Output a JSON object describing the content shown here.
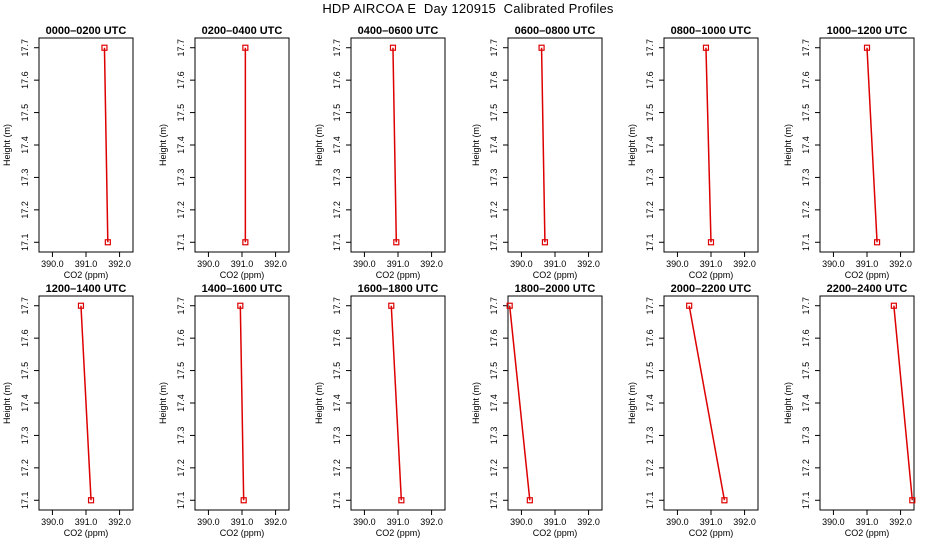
{
  "figure": {
    "title": "HDP AIRCOA E  Day 120915  Calibrated Profiles",
    "line_color": "#dd0000",
    "axis_color": "#000000"
  },
  "chart_data": [
    {
      "type": "line",
      "title": "0000–0200 UTC",
      "xlabel": "CO2 (ppm)",
      "ylabel": "Height (m)",
      "xlim": [
        389.6,
        392.4
      ],
      "ylim": [
        17.07,
        17.73
      ],
      "x_ticks": [
        "390.0",
        "391.0",
        "392.0"
      ],
      "y_ticks": [
        "17.1",
        "17.2",
        "17.3",
        "17.4",
        "17.5",
        "17.6",
        "17.7"
      ],
      "grid": false,
      "series": [
        {
          "x": [
            391.55,
            391.65
          ],
          "y": [
            17.7,
            17.1
          ]
        }
      ]
    },
    {
      "type": "line",
      "title": "0200–0400 UTC",
      "xlabel": "CO2 (ppm)",
      "ylabel": "Height (m)",
      "xlim": [
        389.6,
        392.4
      ],
      "ylim": [
        17.07,
        17.73
      ],
      "x_ticks": [
        "390.0",
        "391.0",
        "392.0"
      ],
      "y_ticks": [
        "17.1",
        "17.2",
        "17.3",
        "17.4",
        "17.5",
        "17.6",
        "17.7"
      ],
      "grid": false,
      "series": [
        {
          "x": [
            391.1,
            391.1
          ],
          "y": [
            17.7,
            17.1
          ]
        }
      ]
    },
    {
      "type": "line",
      "title": "0400–0600 UTC",
      "xlabel": "CO2 (ppm)",
      "ylabel": "Height (m)",
      "xlim": [
        389.6,
        392.4
      ],
      "ylim": [
        17.07,
        17.73
      ],
      "x_ticks": [
        "390.0",
        "391.0",
        "392.0"
      ],
      "y_ticks": [
        "17.1",
        "17.2",
        "17.3",
        "17.4",
        "17.5",
        "17.6",
        "17.7"
      ],
      "grid": false,
      "series": [
        {
          "x": [
            390.85,
            390.95
          ],
          "y": [
            17.7,
            17.1
          ]
        }
      ]
    },
    {
      "type": "line",
      "title": "0600–0800 UTC",
      "xlabel": "CO2 (ppm)",
      "ylabel": "Height (m)",
      "xlim": [
        389.6,
        392.4
      ],
      "ylim": [
        17.07,
        17.73
      ],
      "x_ticks": [
        "390.0",
        "391.0",
        "392.0"
      ],
      "y_ticks": [
        "17.1",
        "17.2",
        "17.3",
        "17.4",
        "17.5",
        "17.6",
        "17.7"
      ],
      "grid": false,
      "series": [
        {
          "x": [
            390.6,
            390.7
          ],
          "y": [
            17.7,
            17.1
          ]
        }
      ]
    },
    {
      "type": "line",
      "title": "0800–1000 UTC",
      "xlabel": "CO2 (ppm)",
      "ylabel": "Height (m)",
      "xlim": [
        389.6,
        392.4
      ],
      "ylim": [
        17.07,
        17.73
      ],
      "x_ticks": [
        "390.0",
        "391.0",
        "392.0"
      ],
      "y_ticks": [
        "17.1",
        "17.2",
        "17.3",
        "17.4",
        "17.5",
        "17.6",
        "17.7"
      ],
      "grid": false,
      "series": [
        {
          "x": [
            390.85,
            391.0
          ],
          "y": [
            17.7,
            17.1
          ]
        }
      ]
    },
    {
      "type": "line",
      "title": "1000–1200 UTC",
      "xlabel": "CO2 (ppm)",
      "ylabel": "Height (m)",
      "xlim": [
        389.6,
        392.4
      ],
      "ylim": [
        17.07,
        17.73
      ],
      "x_ticks": [
        "390.0",
        "391.0",
        "392.0"
      ],
      "y_ticks": [
        "17.1",
        "17.2",
        "17.3",
        "17.4",
        "17.5",
        "17.6",
        "17.7"
      ],
      "grid": false,
      "series": [
        {
          "x": [
            391.0,
            391.3
          ],
          "y": [
            17.7,
            17.1
          ]
        }
      ]
    },
    {
      "type": "line",
      "title": "1200–1400 UTC",
      "xlabel": "CO2 (ppm)",
      "ylabel": "Height (m)",
      "xlim": [
        389.6,
        392.4
      ],
      "ylim": [
        17.07,
        17.73
      ],
      "x_ticks": [
        "390.0",
        "391.0",
        "392.0"
      ],
      "y_ticks": [
        "17.1",
        "17.2",
        "17.3",
        "17.4",
        "17.5",
        "17.6",
        "17.7"
      ],
      "grid": false,
      "series": [
        {
          "x": [
            390.85,
            391.15
          ],
          "y": [
            17.7,
            17.1
          ]
        }
      ]
    },
    {
      "type": "line",
      "title": "1400–1600 UTC",
      "xlabel": "CO2 (ppm)",
      "ylabel": "Height (m)",
      "xlim": [
        389.6,
        392.4
      ],
      "ylim": [
        17.07,
        17.73
      ],
      "x_ticks": [
        "390.0",
        "391.0",
        "392.0"
      ],
      "y_ticks": [
        "17.1",
        "17.2",
        "17.3",
        "17.4",
        "17.5",
        "17.6",
        "17.7"
      ],
      "grid": false,
      "series": [
        {
          "x": [
            390.95,
            391.05
          ],
          "y": [
            17.7,
            17.1
          ]
        }
      ]
    },
    {
      "type": "line",
      "title": "1600–1800 UTC",
      "xlabel": "CO2 (ppm)",
      "ylabel": "Height (m)",
      "xlim": [
        389.6,
        392.4
      ],
      "ylim": [
        17.07,
        17.73
      ],
      "x_ticks": [
        "390.0",
        "391.0",
        "392.0"
      ],
      "y_ticks": [
        "17.1",
        "17.2",
        "17.3",
        "17.4",
        "17.5",
        "17.6",
        "17.7"
      ],
      "grid": false,
      "series": [
        {
          "x": [
            390.8,
            391.1
          ],
          "y": [
            17.7,
            17.1
          ]
        }
      ]
    },
    {
      "type": "line",
      "title": "1800–2000 UTC",
      "xlabel": "CO2 (ppm)",
      "ylabel": "Height (m)",
      "xlim": [
        389.6,
        392.4
      ],
      "ylim": [
        17.07,
        17.73
      ],
      "x_ticks": [
        "390.0",
        "391.0",
        "392.0"
      ],
      "y_ticks": [
        "17.1",
        "17.2",
        "17.3",
        "17.4",
        "17.5",
        "17.6",
        "17.7"
      ],
      "grid": false,
      "series": [
        {
          "x": [
            389.65,
            390.25
          ],
          "y": [
            17.7,
            17.1
          ]
        }
      ]
    },
    {
      "type": "line",
      "title": "2000–2200 UTC",
      "xlabel": "CO2 (ppm)",
      "ylabel": "Height (m)",
      "xlim": [
        389.6,
        392.4
      ],
      "ylim": [
        17.07,
        17.73
      ],
      "x_ticks": [
        "390.0",
        "391.0",
        "392.0"
      ],
      "y_ticks": [
        "17.1",
        "17.2",
        "17.3",
        "17.4",
        "17.5",
        "17.6",
        "17.7"
      ],
      "grid": false,
      "series": [
        {
          "x": [
            390.35,
            391.4
          ],
          "y": [
            17.7,
            17.1
          ]
        }
      ]
    },
    {
      "type": "line",
      "title": "2200–2400 UTC",
      "xlabel": "CO2 (ppm)",
      "ylabel": "Height (m)",
      "xlim": [
        389.6,
        392.4
      ],
      "ylim": [
        17.07,
        17.73
      ],
      "x_ticks": [
        "390.0",
        "391.0",
        "392.0"
      ],
      "y_ticks": [
        "17.1",
        "17.2",
        "17.3",
        "17.4",
        "17.5",
        "17.6",
        "17.7"
      ],
      "grid": false,
      "series": [
        {
          "x": [
            391.8,
            392.35
          ],
          "y": [
            17.7,
            17.1
          ]
        }
      ]
    }
  ]
}
